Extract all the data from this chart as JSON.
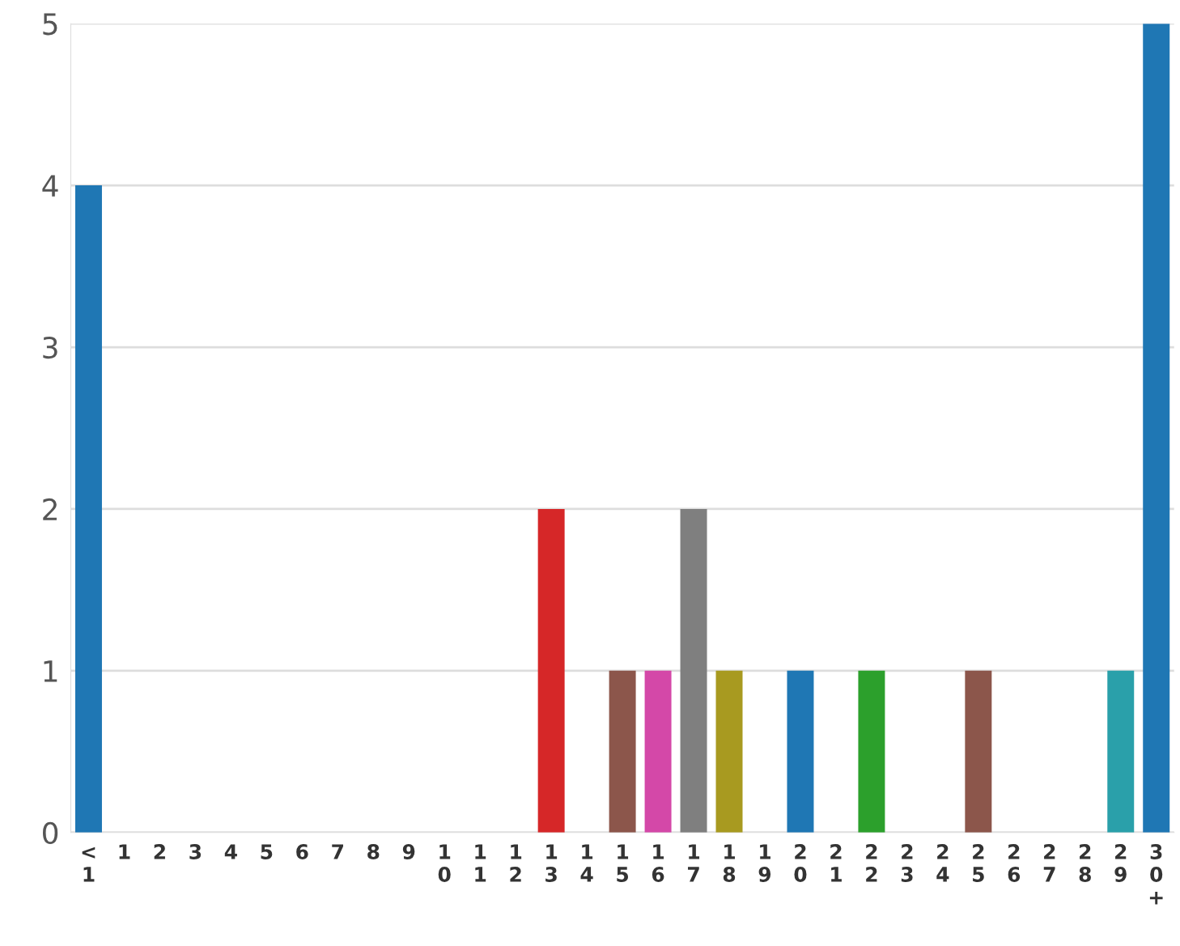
{
  "chart_data": {
    "type": "bar",
    "categories": [
      "<1",
      "1",
      "2",
      "3",
      "4",
      "5",
      "6",
      "7",
      "8",
      "9",
      "10",
      "11",
      "12",
      "13",
      "14",
      "15",
      "16",
      "17",
      "18",
      "19",
      "20",
      "21",
      "22",
      "23",
      "24",
      "25",
      "26",
      "27",
      "28",
      "29",
      "30+"
    ],
    "values": [
      4,
      0,
      0,
      0,
      0,
      0,
      0,
      0,
      0,
      0,
      0,
      0,
      0,
      2,
      0,
      1,
      1,
      2,
      1,
      0,
      1,
      0,
      1,
      0,
      0,
      1,
      0,
      0,
      0,
      1,
      5
    ],
    "colors": [
      "#1f77b4",
      "#1f77b4",
      "#1f77b4",
      "#1f77b4",
      "#1f77b4",
      "#1f77b4",
      "#1f77b4",
      "#1f77b4",
      "#1f77b4",
      "#1f77b4",
      "#1f77b4",
      "#1f77b4",
      "#1f77b4",
      "#d62728",
      "#1f77b4",
      "#8c564b",
      "#d448a8",
      "#7f7f7f",
      "#a89a20",
      "#1f77b4",
      "#1f77b4",
      "#1f77b4",
      "#2ca02c",
      "#1f77b4",
      "#1f77b4",
      "#8c564b",
      "#1f77b4",
      "#1f77b4",
      "#1f77b4",
      "#2aa0aa",
      "#1f77b4"
    ],
    "ylim": [
      0,
      5
    ],
    "yticks": [
      0,
      1,
      2,
      3,
      4,
      5
    ],
    "grid": "y",
    "legend": false
  }
}
